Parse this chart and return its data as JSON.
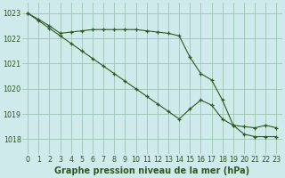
{
  "title": "Graphe pression niveau de la mer (hPa)",
  "background_color": "#ceeaea",
  "plot_background": "#ceeaea",
  "grid_color": "#9ec4b4",
  "line_color": "#2d5a1e",
  "marker_color": "#2d5a1e",
  "xlim": [
    -0.5,
    23.5
  ],
  "ylim": [
    1017.4,
    1023.4
  ],
  "yticks": [
    1018,
    1019,
    1020,
    1021,
    1022,
    1023
  ],
  "xticks": [
    0,
    1,
    2,
    3,
    4,
    5,
    6,
    7,
    8,
    9,
    10,
    11,
    12,
    13,
    14,
    15,
    16,
    17,
    18,
    19,
    20,
    21,
    22,
    23
  ],
  "series1": {
    "x": [
      0,
      1,
      2,
      3,
      4,
      5,
      6,
      7,
      8,
      9,
      10,
      11,
      12,
      13,
      14,
      15,
      16,
      17,
      18,
      19,
      20,
      21,
      22,
      23
    ],
    "y": [
      1023.0,
      1022.75,
      1022.5,
      1022.2,
      1022.25,
      1022.3,
      1022.35,
      1022.35,
      1022.35,
      1022.35,
      1022.35,
      1022.3,
      1022.25,
      1022.2,
      1022.1,
      1021.25,
      1020.6,
      1020.35,
      1019.55,
      1018.55,
      1018.5,
      1018.45,
      1018.55,
      1018.45
    ]
  },
  "series2": {
    "x": [
      0,
      1,
      2,
      3,
      4,
      5,
      6,
      7,
      8,
      9,
      10,
      11,
      12,
      13,
      14,
      15,
      16,
      17,
      18,
      19,
      20,
      21,
      22,
      23
    ],
    "y": [
      1023.0,
      1022.7,
      1022.4,
      1022.1,
      1021.8,
      1021.5,
      1021.2,
      1020.9,
      1020.6,
      1020.3,
      1020.0,
      1019.7,
      1019.4,
      1019.1,
      1018.8,
      1019.2,
      1019.55,
      1019.35,
      1018.8,
      1018.55,
      1018.2,
      1018.1,
      1018.1,
      1018.1
    ]
  },
  "title_fontsize": 7,
  "tick_fontsize": 5.8,
  "title_color": "#2d5a1e",
  "tick_color": "#2d5a1e"
}
